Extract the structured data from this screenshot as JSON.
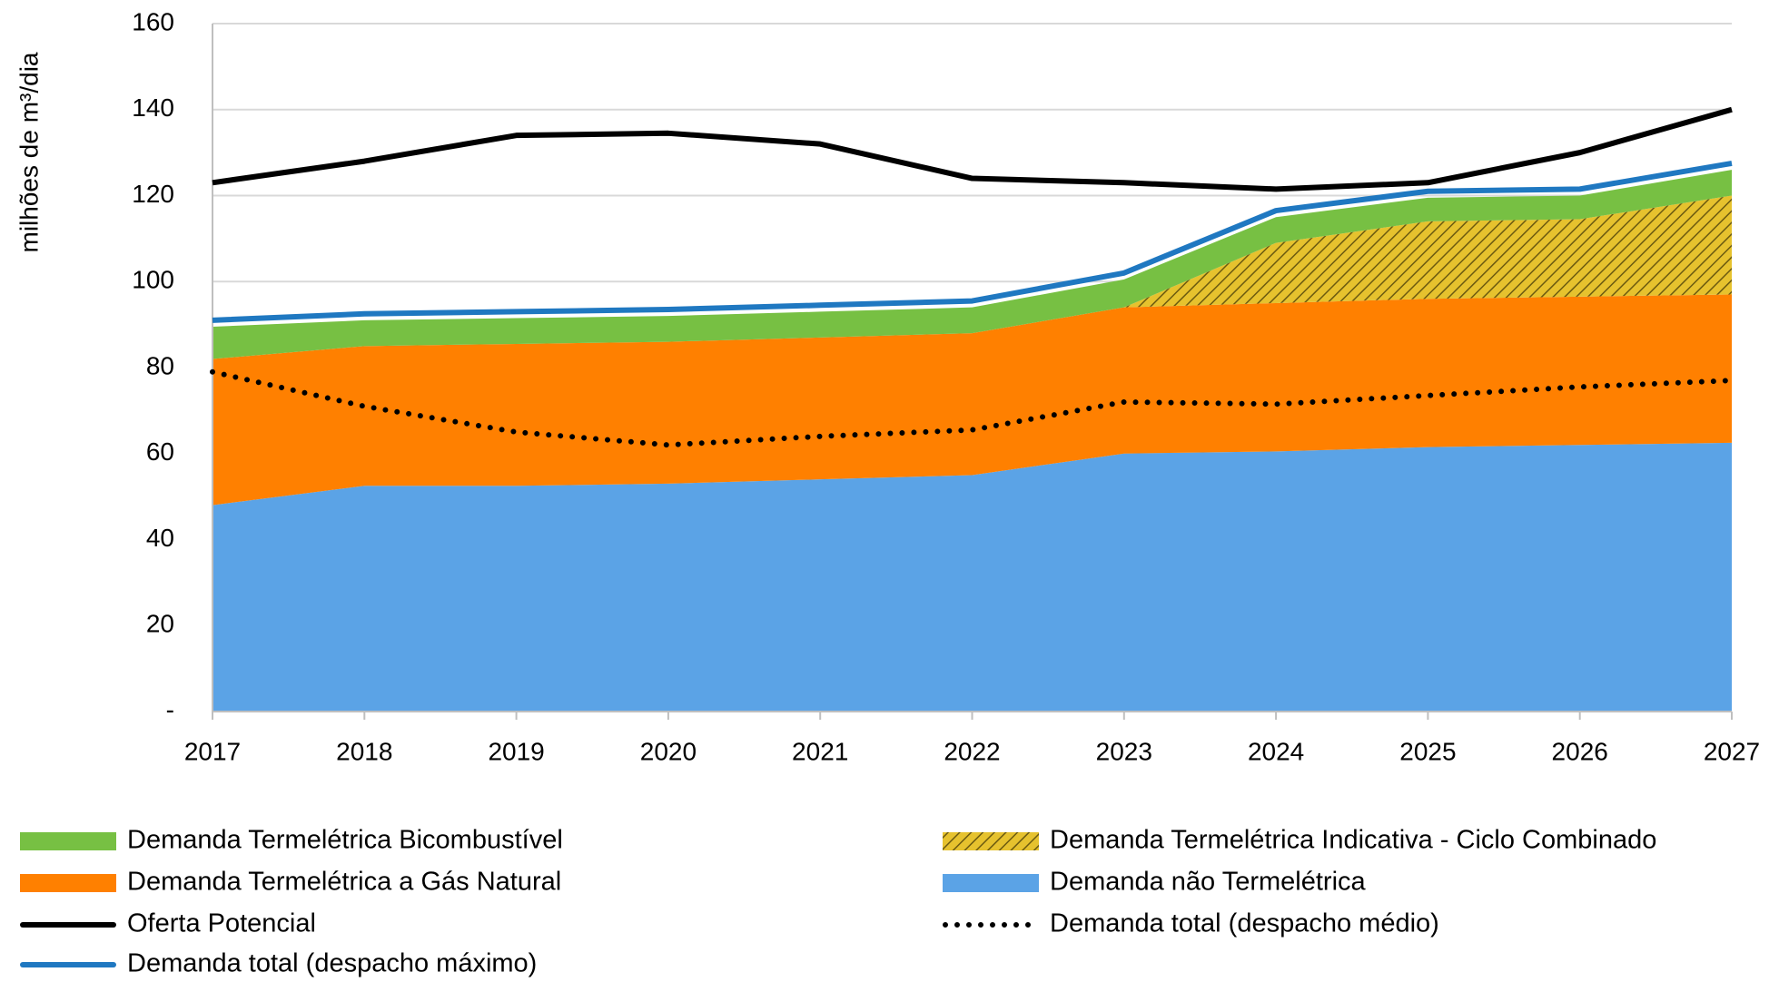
{
  "chart_data": {
    "type": "stacked_area",
    "y_axis_label": "milhões de m³/dia",
    "categories": [
      "2017",
      "2018",
      "2019",
      "2020",
      "2021",
      "2022",
      "2023",
      "2024",
      "2025",
      "2026",
      "2027"
    ],
    "ylim": [
      0,
      160
    ],
    "yticks": [
      {
        "value": 0,
        "label": "-"
      },
      20,
      40,
      60,
      80,
      100,
      120,
      140,
      160
    ],
    "grid": true,
    "series": [
      {
        "name": "Demanda não Termelétrica",
        "kind": "area",
        "color": "#5ba3e6",
        "values": [
          48,
          52.5,
          52.5,
          53,
          54,
          55,
          60,
          60.5,
          61.5,
          62,
          62.5
        ]
      },
      {
        "name": "Demanda Termelétrica a Gás Natural",
        "kind": "area",
        "color": "#ff8000",
        "values": [
          34,
          32.5,
          33,
          33,
          33,
          33,
          34,
          34.5,
          34.5,
          34.5,
          34.5
        ]
      },
      {
        "name": "Demanda Termelétrica Indicativa - Ciclo Combinado",
        "kind": "area",
        "style": "hatched",
        "color": "#e6c22e",
        "values": [
          0,
          0,
          0,
          0,
          0,
          0,
          0,
          14,
          18,
          18,
          23
        ]
      },
      {
        "name": "Demanda Termelétrica Bicombustível",
        "kind": "area",
        "color": "#77c043",
        "values": [
          7.5,
          6,
          6,
          6,
          6,
          6,
          6.5,
          6,
          5.5,
          5.5,
          6
        ]
      },
      {
        "name": "Oferta Potencial",
        "kind": "line",
        "color": "#000000",
        "values": [
          123,
          128,
          134,
          134.5,
          132,
          124,
          123,
          121.5,
          123,
          130,
          140
        ]
      },
      {
        "name": "Demanda total (despacho máximo)",
        "kind": "line",
        "color": "#1f78c1",
        "values": [
          91,
          92.5,
          93,
          93.5,
          94.5,
          95.5,
          102,
          116.5,
          121,
          121.5,
          127.5
        ]
      },
      {
        "name": "Demanda total (despacho médio)",
        "kind": "line",
        "style": "dotted",
        "color": "#000000",
        "values": [
          79,
          71,
          65,
          62,
          64,
          65.5,
          72,
          71.5,
          73.5,
          75.5,
          77
        ]
      }
    ]
  }
}
